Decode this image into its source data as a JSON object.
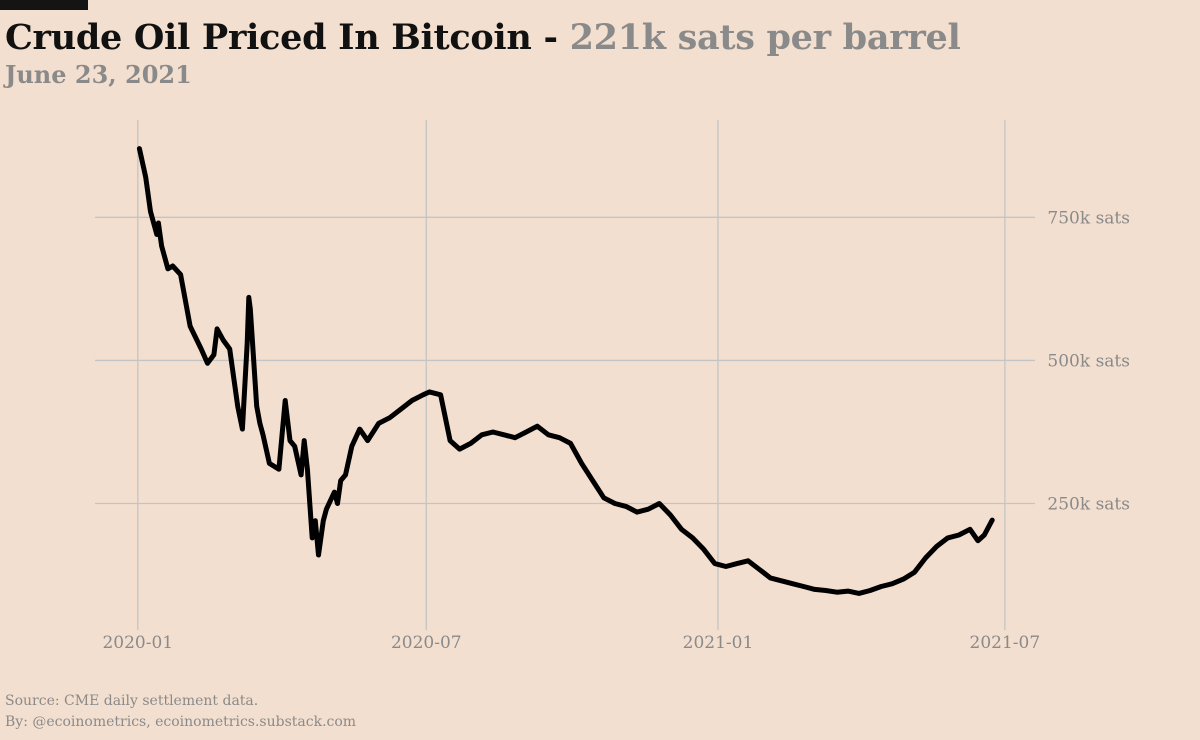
{
  "header": {
    "title_main": "Crude Oil Priced In Bitcoin",
    "title_separator": " - ",
    "title_highlight": "221k sats per barrel",
    "date": "June 23, 2021"
  },
  "footer": {
    "source": "Source: CME daily settlement data.",
    "byline": "By: @ecoinometrics, ecoinometrics.substack.com"
  },
  "colors": {
    "background": "#f3dfcf",
    "line": "#000000",
    "grid": "#c4c4c4",
    "muted_text": "#8a8a8a"
  },
  "chart_data": {
    "type": "line",
    "title": "Crude Oil Priced In Bitcoin - 221k sats per barrel",
    "subtitle": "June 23, 2021",
    "unit": "sats per barrel",
    "x_ticks": [
      {
        "value": "2020-01-01",
        "label": "2020-01"
      },
      {
        "value": "2020-07-01",
        "label": "2020-07"
      },
      {
        "value": "2021-01-01",
        "label": "2021-01"
      },
      {
        "value": "2021-07-01",
        "label": "2021-07"
      }
    ],
    "y_ticks": [
      {
        "value": 250000,
        "label": "250k sats"
      },
      {
        "value": 500000,
        "label": "500k sats"
      },
      {
        "value": 750000,
        "label": "750k sats"
      }
    ],
    "xlim": [
      "2019-12-05",
      "2021-07-20"
    ],
    "ylim": [
      50000,
      920000
    ],
    "y_axis_side": "right",
    "grid": true,
    "series": [
      {
        "x": [
          "2020-01-02",
          "2020-01-06",
          "2020-01-09",
          "2020-01-13",
          "2020-01-14",
          "2020-01-16",
          "2020-01-20",
          "2020-01-23",
          "2020-01-28",
          "2020-02-03",
          "2020-02-10",
          "2020-02-14",
          "2020-02-18",
          "2020-02-20",
          "2020-02-24",
          "2020-02-28",
          "2020-03-04",
          "2020-03-07",
          "2020-03-10",
          "2020-03-11",
          "2020-03-12",
          "2020-03-16",
          "2020-03-18",
          "2020-03-20",
          "2020-03-24",
          "2020-03-30",
          "2020-04-03",
          "2020-04-06",
          "2020-04-09",
          "2020-04-13",
          "2020-04-15",
          "2020-04-17",
          "2020-04-20",
          "2020-04-22",
          "2020-04-24",
          "2020-04-27",
          "2020-04-29",
          "2020-05-04",
          "2020-05-06",
          "2020-05-08",
          "2020-05-11",
          "2020-05-15",
          "2020-05-20",
          "2020-05-25",
          "2020-06-01",
          "2020-06-08",
          "2020-06-15",
          "2020-06-22",
          "2020-06-29",
          "2020-07-03",
          "2020-07-10",
          "2020-07-16",
          "2020-07-22",
          "2020-07-29",
          "2020-08-05",
          "2020-08-12",
          "2020-08-19",
          "2020-08-26",
          "2020-09-02",
          "2020-09-09",
          "2020-09-16",
          "2020-09-23",
          "2020-09-30",
          "2020-10-07",
          "2020-10-14",
          "2020-10-21",
          "2020-10-28",
          "2020-11-04",
          "2020-11-11",
          "2020-11-18",
          "2020-11-25",
          "2020-12-02",
          "2020-12-09",
          "2020-12-16",
          "2020-12-23",
          "2020-12-30",
          "2021-01-06",
          "2021-01-13",
          "2021-01-20",
          "2021-01-27",
          "2021-02-03",
          "2021-02-10",
          "2021-02-17",
          "2021-02-24",
          "2021-03-03",
          "2021-03-10",
          "2021-03-17",
          "2021-03-24",
          "2021-03-31",
          "2021-04-07",
          "2021-04-14",
          "2021-04-21",
          "2021-04-28",
          "2021-05-05",
          "2021-05-12",
          "2021-05-19",
          "2021-05-26",
          "2021-06-02",
          "2021-06-09",
          "2021-06-14",
          "2021-06-18",
          "2021-06-23"
        ],
        "y": [
          870000,
          820000,
          760000,
          720000,
          740000,
          700000,
          660000,
          665000,
          650000,
          560000,
          520000,
          495000,
          510000,
          555000,
          535000,
          520000,
          420000,
          380000,
          530000,
          610000,
          590000,
          420000,
          390000,
          370000,
          320000,
          310000,
          430000,
          360000,
          350000,
          300000,
          360000,
          310000,
          190000,
          220000,
          160000,
          220000,
          240000,
          270000,
          250000,
          290000,
          300000,
          350000,
          380000,
          360000,
          390000,
          400000,
          415000,
          430000,
          440000,
          445000,
          440000,
          360000,
          345000,
          355000,
          370000,
          375000,
          370000,
          365000,
          375000,
          385000,
          370000,
          365000,
          355000,
          320000,
          290000,
          260000,
          250000,
          245000,
          235000,
          240000,
          250000,
          230000,
          205000,
          190000,
          170000,
          145000,
          140000,
          145000,
          150000,
          135000,
          120000,
          115000,
          110000,
          105000,
          100000,
          98000,
          95000,
          97000,
          93000,
          98000,
          105000,
          110000,
          118000,
          130000,
          155000,
          175000,
          190000,
          195000,
          205000,
          185000,
          195000,
          221000
        ]
      }
    ]
  }
}
